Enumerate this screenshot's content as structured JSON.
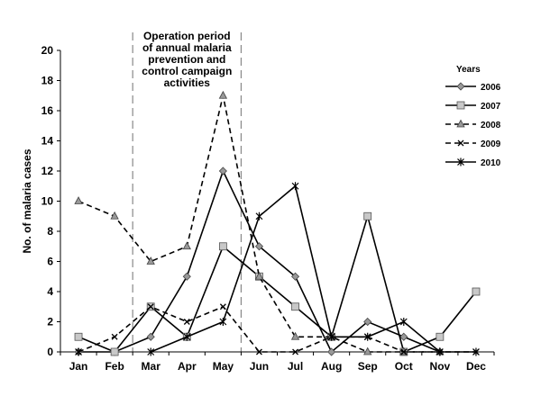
{
  "chart_data": {
    "type": "line",
    "title": "",
    "xlabel": "",
    "ylabel": "No. of malaria cases",
    "ylim": [
      0,
      20
    ],
    "yticks": [
      0,
      2,
      4,
      6,
      8,
      10,
      12,
      14,
      16,
      18,
      20
    ],
    "categories": [
      "Jan",
      "Feb",
      "Mar",
      "Apr",
      "May",
      "Jun",
      "Jul",
      "Aug",
      "Sep",
      "Oct",
      "Nov",
      "Dec"
    ],
    "grid": false,
    "legend": {
      "title": "Years",
      "position": "right"
    },
    "annotation": {
      "lines": [
        "Operation period",
        "of annual malaria",
        "prevention and",
        "control campaign",
        "activities"
      ],
      "span_between": [
        "Feb",
        "Mar",
        "May",
        "Jun"
      ]
    },
    "series": [
      {
        "name": "2006",
        "values": [
          0,
          0,
          1,
          5,
          12,
          7,
          5,
          0,
          2,
          1,
          0,
          null
        ],
        "marker": "diamond",
        "dash": "solid",
        "color": "#000000",
        "marker_fill": "#999999"
      },
      {
        "name": "2007",
        "values": [
          1,
          0,
          3,
          1,
          7,
          5,
          3,
          1,
          9,
          0,
          1,
          4
        ],
        "marker": "square",
        "dash": "solid",
        "color": "#000000",
        "marker_fill": "#c8c8c8"
      },
      {
        "name": "2008",
        "values": [
          10,
          9,
          6,
          7,
          17,
          5,
          1,
          1,
          0,
          0,
          0,
          null
        ],
        "marker": "triangle",
        "dash": "dashed",
        "color": "#000000",
        "marker_fill": "#999999"
      },
      {
        "name": "2009",
        "values": [
          0,
          1,
          3,
          2,
          3,
          0,
          0,
          1,
          1,
          0,
          0,
          0
        ],
        "marker": "x",
        "dash": "dashed",
        "color": "#000000",
        "marker_fill": "none"
      },
      {
        "name": "2010",
        "values": [
          0,
          null,
          0,
          1,
          2,
          9,
          11,
          1,
          1,
          2,
          0,
          0
        ],
        "marker": "star",
        "dash": "solid",
        "color": "#000000",
        "marker_fill": "none"
      }
    ]
  }
}
